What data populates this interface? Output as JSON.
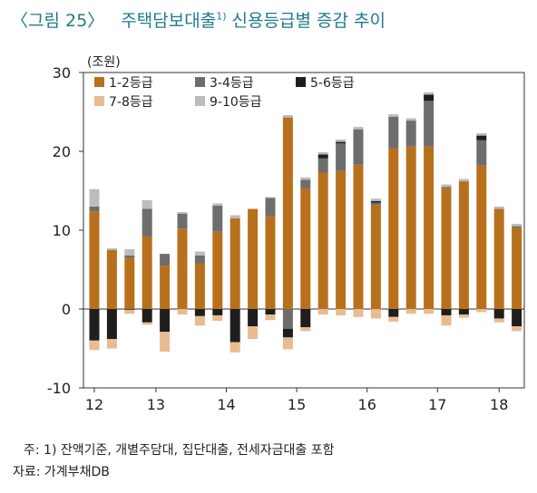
{
  "header": {
    "figure_label": "〈그림 25〉",
    "title_main": "주택담보대출",
    "title_sup": "1)",
    "title_rest": " 신용등급별 증감 추이"
  },
  "footer": {
    "note": "주:  1) 잔액기준, 개별주담대, 집단대출, 전세자금대출 포함",
    "source": "자료: 가계부채DB"
  },
  "chart_data": {
    "type": "bar",
    "stacked": true,
    "unit_label": "(조원)",
    "ylim": [
      -10,
      30
    ],
    "yticks": [
      -10,
      0,
      10,
      20,
      30
    ],
    "xtick_labels": [
      {
        "label": "12",
        "index": 0
      },
      {
        "label": "13",
        "index": 3.5
      },
      {
        "label": "14",
        "index": 7.5
      },
      {
        "label": "15",
        "index": 11.5
      },
      {
        "label": "16",
        "index": 15.5
      },
      {
        "label": "17",
        "index": 19.5
      },
      {
        "label": "18",
        "index": 23
      }
    ],
    "legend_position": "top-left",
    "series": [
      {
        "name": "1-2등급",
        "color": "#b8701c",
        "values": [
          12.4,
          7.5,
          6.5,
          9.2,
          5.5,
          10.2,
          5.8,
          9.8,
          11.5,
          12.7,
          11.8,
          24.3,
          15.3,
          17.3,
          17.5,
          18.3,
          13.2,
          20.4,
          20.6,
          20.6,
          15.3,
          16.2,
          18.2,
          12.7,
          10.3
        ]
      },
      {
        "name": "3-4등급",
        "color": "#6d6d6d",
        "values": [
          0.6,
          0,
          0.3,
          3.5,
          1.5,
          1.9,
          1.0,
          3.3,
          0,
          0,
          2.3,
          -2.5,
          1.1,
          1.8,
          3.5,
          4.5,
          0.3,
          4.0,
          3.3,
          5.8,
          0.2,
          0,
          3.2,
          0,
          0.2
        ]
      },
      {
        "name": "5-6등급",
        "color": "#1e1e1e",
        "values": [
          -4.0,
          -3.8,
          -0.1,
          -1.7,
          -2.9,
          0,
          -0.9,
          -0.8,
          -4.2,
          -2.2,
          -0.7,
          -1.1,
          -2.3,
          0.5,
          0.2,
          0,
          0.2,
          -1.0,
          0,
          0.8,
          -0.8,
          -0.7,
          0.6,
          -1.2,
          -2.2
        ]
      },
      {
        "name": "7-8등급",
        "color": "#e8bb91",
        "values": [
          -1.2,
          -1.2,
          -0.5,
          -0.3,
          -2.5,
          -0.7,
          -1.2,
          -0.7,
          -1.3,
          -1.6,
          -0.7,
          -1.5,
          -0.5,
          -0.7,
          -0.8,
          -1.0,
          -1.2,
          -0.6,
          -0.6,
          -0.6,
          -1.3,
          -0.4,
          -0.4,
          -0.5,
          -0.6
        ]
      },
      {
        "name": "9-10등급",
        "color": "#bcbcbc",
        "values": [
          2.2,
          0.2,
          0.8,
          1.1,
          0,
          0.2,
          0.5,
          0.3,
          0.4,
          0,
          0.1,
          0.3,
          0.3,
          0.3,
          0.3,
          0.3,
          0.3,
          0.3,
          0.3,
          0.3,
          0.3,
          0.3,
          0.3,
          0.3,
          0.3
        ]
      }
    ]
  }
}
